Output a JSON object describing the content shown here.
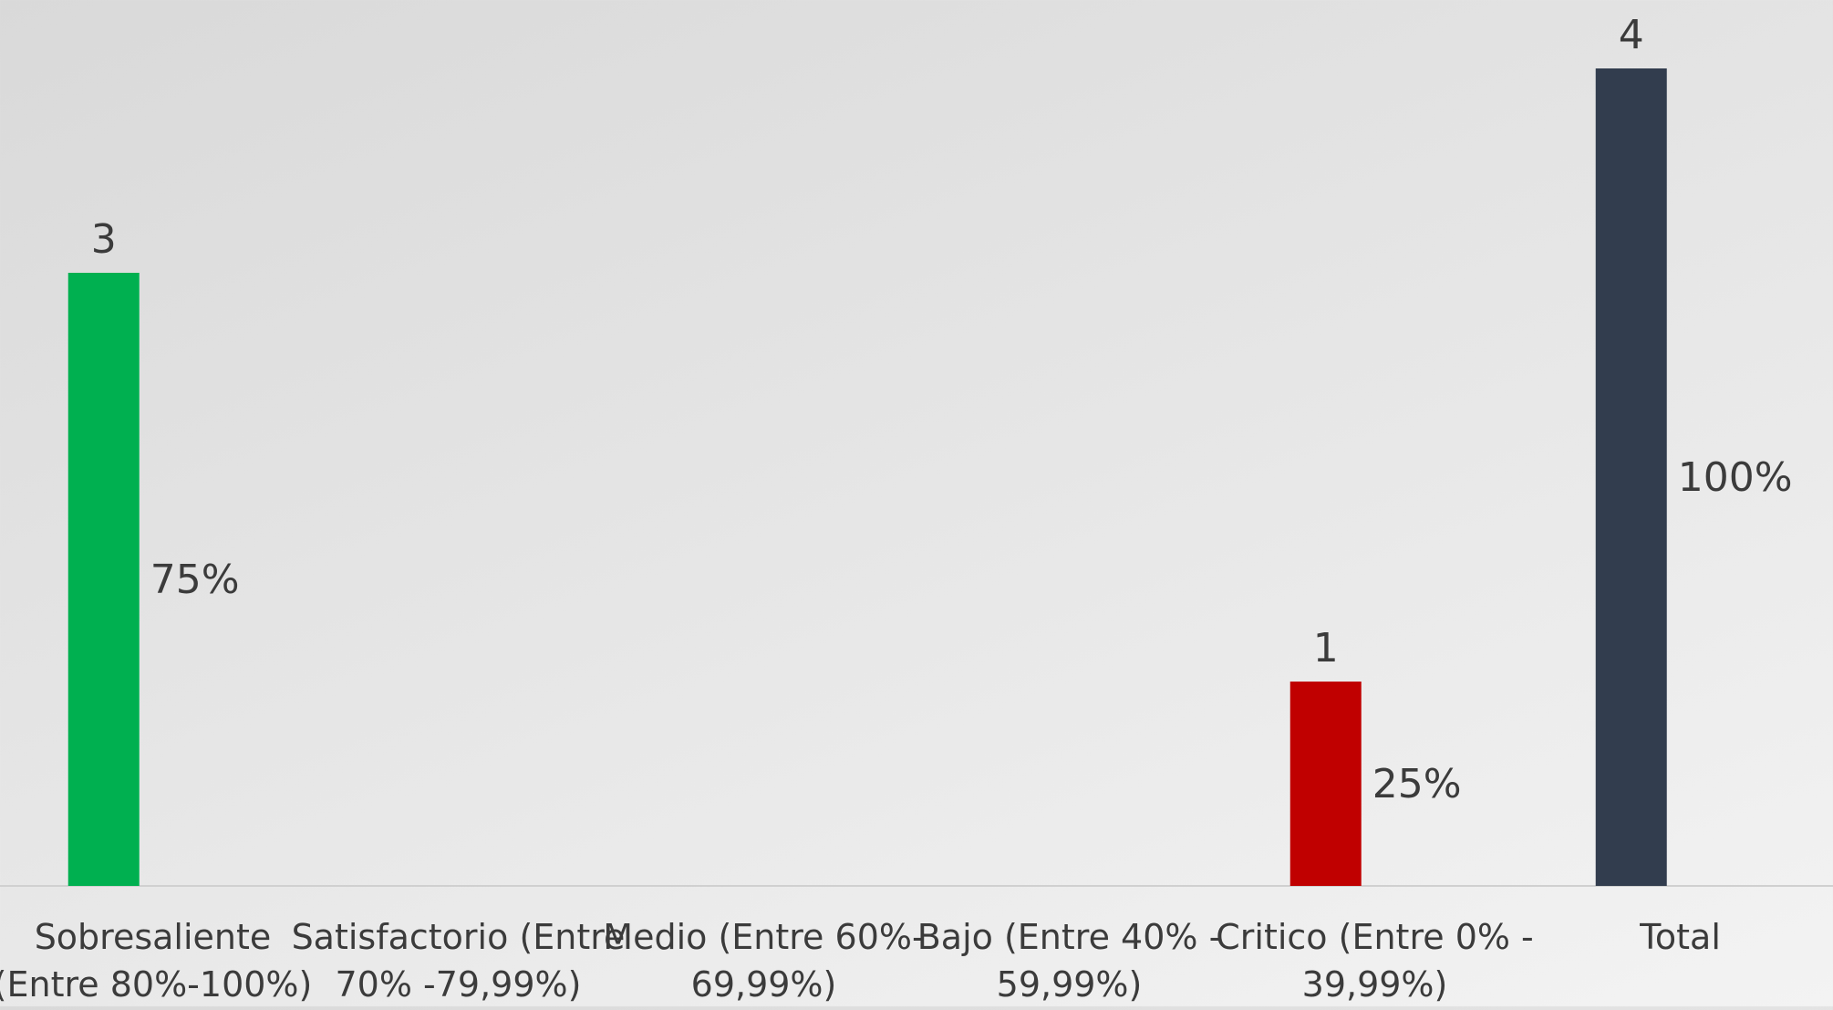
{
  "chart_data": {
    "type": "bar",
    "categories": [
      [
        "Sobresaliente",
        "(Entre 80%-100%)"
      ],
      [
        "Satisfactorio (Entre",
        "70% -79,99%)"
      ],
      [
        "Medio (Entre 60%-",
        "69,99%)"
      ],
      [
        "Bajo (Entre 40% -",
        "59,99%)"
      ],
      [
        "Critico (Entre 0% -",
        "39,99%)"
      ],
      [
        "Total"
      ]
    ],
    "series": [
      {
        "values": [
          3,
          0,
          0,
          0,
          1,
          4
        ],
        "percent_labels": [
          "75%",
          "",
          "",
          "",
          "25%",
          "100%"
        ],
        "value_labels": [
          "3",
          "",
          "",
          "",
          "1",
          "4"
        ],
        "colors": [
          "#00b050",
          "#00b050",
          "#00b050",
          "#00b050",
          "#c00000",
          "#323d4e"
        ]
      }
    ],
    "title": "",
    "xlabel": "",
    "ylabel": "",
    "ylim": [
      0,
      4
    ],
    "grid": false,
    "legend": "none"
  }
}
